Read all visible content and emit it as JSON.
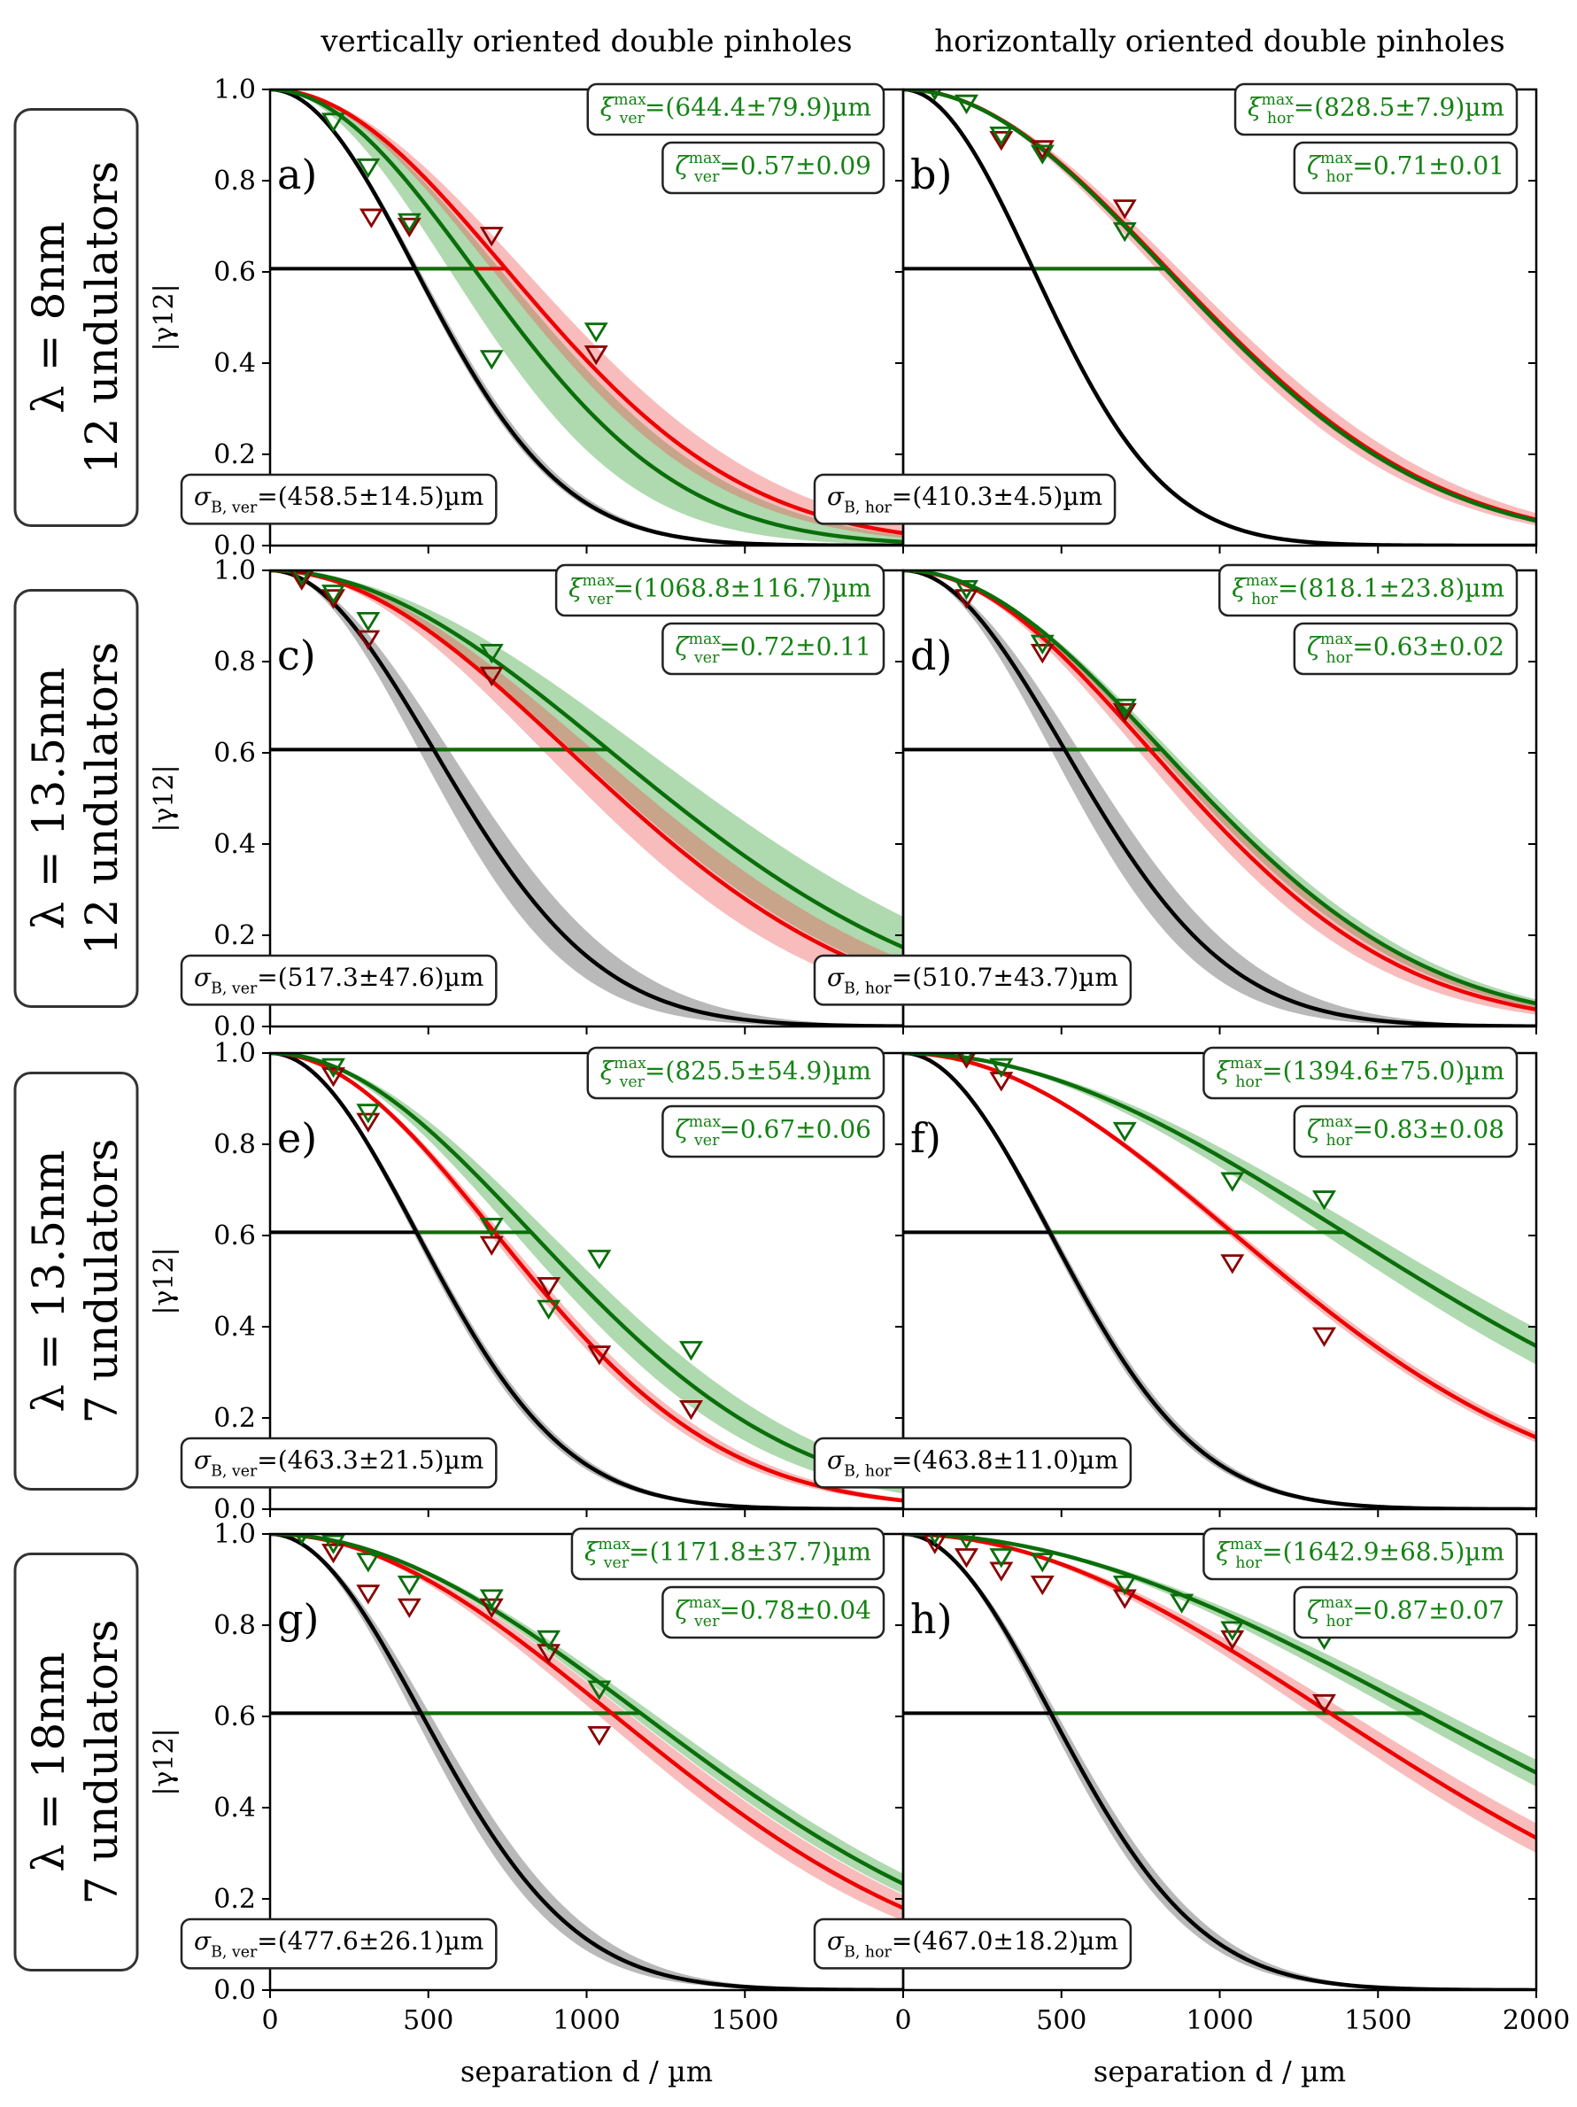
{
  "figure": {
    "column_titles": [
      "vertically oriented double pinholes",
      "horizontally oriented double pinholes"
    ],
    "row_labels": [
      [
        "λ = 8nm",
        "12 undulators"
      ],
      [
        "λ = 13.5nm",
        "12 undulators"
      ],
      [
        "λ = 13.5nm",
        "7 undulators"
      ],
      [
        "λ = 18nm",
        "7 undulators"
      ]
    ],
    "xlabel": "separation d / µm",
    "ylabel": "|γ12|",
    "xlim": [
      0,
      2000
    ],
    "ylim": [
      0.0,
      1.0
    ],
    "x_ticks": [
      "0",
      "500",
      "1000",
      "1500",
      "2000"
    ],
    "y_ticks": [
      "0.0",
      "0.2",
      "0.4",
      "0.6",
      "0.8",
      "1.0"
    ],
    "threshold_level": 0.607,
    "colors": {
      "model_black": "#000000",
      "fit_red": "#ee0000",
      "fit_green": "#0a6e0a",
      "text_green": "#148214"
    }
  },
  "chart_data": [
    {
      "type": "line",
      "panel_label": "a)",
      "orientation": "ver",
      "xi_max_label": "ξ_ver^max=(644.4±79.9)µm",
      "zeta_max_label": "ζ_ver^max=0.57±0.09",
      "sigma_label": "σ_B,ver=(458.5±14.5)µm",
      "black_curve": {
        "xi": 458.5,
        "band_lo": 450,
        "band_hi": 470
      },
      "red_curve": {
        "xi": 745,
        "band_lo": 700,
        "band_hi": 800
      },
      "green_curve": {
        "xi": 644.4,
        "band_lo": 565,
        "band_hi": 725
      },
      "red_markers": {
        "x": [
          320,
          440,
          700,
          1030
        ],
        "y": [
          0.72,
          0.7,
          0.68,
          0.42
        ]
      },
      "green_markers": {
        "x": [
          200,
          310,
          440,
          700,
          1030
        ],
        "y": [
          0.93,
          0.83,
          0.71,
          0.41,
          0.47
        ]
      }
    },
    {
      "type": "line",
      "panel_label": "b)",
      "orientation": "hor",
      "xi_max_label": "ξ_hor^max=(828.5±7.9)µm",
      "zeta_max_label": "ζ_hor^max=0.71±0.01",
      "sigma_label": "σ_B,hor=(410.3±4.5)µm",
      "black_curve": {
        "xi": 410.3,
        "band_lo": 405,
        "band_hi": 415
      },
      "red_curve": {
        "xi": 835,
        "band_lo": 800,
        "band_hi": 870
      },
      "green_curve": {
        "xi": 828.5,
        "band_lo": 820,
        "band_hi": 836
      },
      "red_markers": {
        "x": [
          100,
          310,
          440,
          700
        ],
        "y": [
          1.0,
          0.89,
          0.87,
          0.74
        ]
      },
      "green_markers": {
        "x": [
          100,
          200,
          310,
          440,
          700
        ],
        "y": [
          1.0,
          0.97,
          0.9,
          0.86,
          0.69
        ]
      }
    },
    {
      "type": "line",
      "panel_label": "c)",
      "orientation": "ver",
      "xi_max_label": "ξ_ver^max=(1068.8±116.7)µm",
      "zeta_max_label": "ζ_ver^max=0.72±0.11",
      "sigma_label": "σ_B,ver=(517.3±47.6)µm",
      "black_curve": {
        "xi": 517.3,
        "band_lo": 470,
        "band_hi": 565
      },
      "red_curve": {
        "xi": 940,
        "band_lo": 860,
        "band_hi": 1020
      },
      "green_curve": {
        "xi": 1068.8,
        "band_lo": 952,
        "band_hi": 1185
      },
      "red_markers": {
        "x": [
          100,
          200,
          310,
          700
        ],
        "y": [
          0.98,
          0.94,
          0.85,
          0.77
        ]
      },
      "green_markers": {
        "x": [
          100,
          200,
          310,
          700
        ],
        "y": [
          0.99,
          0.95,
          0.89,
          0.82
        ]
      }
    },
    {
      "type": "line",
      "panel_label": "d)",
      "orientation": "hor",
      "xi_max_label": "ξ_hor^max=(818.1±23.8)µm",
      "zeta_max_label": "ζ_hor^max=0.63±0.02",
      "sigma_label": "σ_B,hor=(510.7±43.7)µm",
      "black_curve": {
        "xi": 510.7,
        "band_lo": 467,
        "band_hi": 554
      },
      "red_curve": {
        "xi": 780,
        "band_lo": 740,
        "band_hi": 820
      },
      "green_curve": {
        "xi": 818.1,
        "band_lo": 794,
        "band_hi": 842
      },
      "red_markers": {
        "x": [
          200,
          440,
          700
        ],
        "y": [
          0.94,
          0.82,
          0.69
        ]
      },
      "green_markers": {
        "x": [
          200,
          440,
          700
        ],
        "y": [
          0.96,
          0.84,
          0.7
        ]
      }
    },
    {
      "type": "line",
      "panel_label": "e)",
      "orientation": "ver",
      "xi_max_label": "ξ_ver^max=(825.5±54.9)µm",
      "zeta_max_label": "ζ_ver^max=0.67±0.06",
      "sigma_label": "σ_B,ver=(463.3±21.5)µm",
      "black_curve": {
        "xi": 463.3,
        "band_lo": 452,
        "band_hi": 474
      },
      "red_curve": {
        "xi": 710,
        "band_lo": 690,
        "band_hi": 730
      },
      "green_curve": {
        "xi": 825.5,
        "band_lo": 770,
        "band_hi": 880
      },
      "red_markers": {
        "x": [
          200,
          310,
          700,
          880,
          1040,
          1330
        ],
        "y": [
          0.95,
          0.85,
          0.58,
          0.49,
          0.34,
          0.22
        ]
      },
      "green_markers": {
        "x": [
          200,
          310,
          700,
          880,
          1040,
          1330
        ],
        "y": [
          0.97,
          0.87,
          0.62,
          0.44,
          0.55,
          0.35
        ]
      }
    },
    {
      "type": "line",
      "panel_label": "f)",
      "orientation": "hor",
      "xi_max_label": "ξ_hor^max=(1394.6±75.0)µm",
      "zeta_max_label": "ζ_hor^max=0.83±0.08",
      "sigma_label": "σ_B,hor=(463.8±11.0)µm",
      "black_curve": {
        "xi": 463.8,
        "band_lo": 453,
        "band_hi": 475
      },
      "red_curve": {
        "xi": 1040,
        "band_lo": 1020,
        "band_hi": 1060
      },
      "green_curve": {
        "xi": 1394.6,
        "band_lo": 1320,
        "band_hi": 1470
      },
      "red_markers": {
        "x": [
          200,
          310,
          1040,
          1330
        ],
        "y": [
          0.99,
          0.94,
          0.54,
          0.38
        ]
      },
      "green_markers": {
        "x": [
          200,
          310,
          700,
          1040,
          1330
        ],
        "y": [
          1.0,
          0.97,
          0.83,
          0.72,
          0.68
        ]
      }
    },
    {
      "type": "line",
      "panel_label": "g)",
      "orientation": "ver",
      "xi_max_label": "ξ_ver^max=(1171.8±37.7)µm",
      "zeta_max_label": "ζ_ver^max=0.78±0.04",
      "sigma_label": "σ_B,ver=(477.6±26.1)µm",
      "black_curve": {
        "xi": 477.6,
        "band_lo": 452,
        "band_hi": 504
      },
      "red_curve": {
        "xi": 1080,
        "band_lo": 1030,
        "band_hi": 1130
      },
      "green_curve": {
        "xi": 1171.8,
        "band_lo": 1134,
        "band_hi": 1210
      },
      "red_markers": {
        "x": [
          100,
          200,
          310,
          440,
          700,
          880,
          1040
        ],
        "y": [
          1.0,
          0.96,
          0.87,
          0.84,
          0.84,
          0.74,
          0.56
        ]
      },
      "green_markers": {
        "x": [
          100,
          200,
          310,
          440,
          700,
          880,
          1040
        ],
        "y": [
          1.0,
          0.98,
          0.94,
          0.89,
          0.86,
          0.77,
          0.66
        ]
      }
    },
    {
      "type": "line",
      "panel_label": "h)",
      "orientation": "hor",
      "xi_max_label": "ξ_hor^max=(1642.9±68.5)µm",
      "zeta_max_label": "ζ_hor^max=0.87±0.07",
      "sigma_label": "σ_B,hor=(467.0±18.2)µm",
      "black_curve": {
        "xi": 467.0,
        "band_lo": 449,
        "band_hi": 485
      },
      "red_curve": {
        "xi": 1350,
        "band_lo": 1290,
        "band_hi": 1410
      },
      "green_curve": {
        "xi": 1642.9,
        "band_lo": 1574,
        "band_hi": 1711
      },
      "red_markers": {
        "x": [
          100,
          200,
          310,
          440,
          700,
          1040,
          1330
        ],
        "y": [
          0.98,
          0.95,
          0.92,
          0.89,
          0.86,
          0.77,
          0.63
        ]
      },
      "green_markers": {
        "x": [
          100,
          200,
          310,
          440,
          700,
          880,
          1040,
          1330
        ],
        "y": [
          1.0,
          0.99,
          0.95,
          0.94,
          0.89,
          0.85,
          0.79,
          0.77
        ]
      }
    }
  ]
}
